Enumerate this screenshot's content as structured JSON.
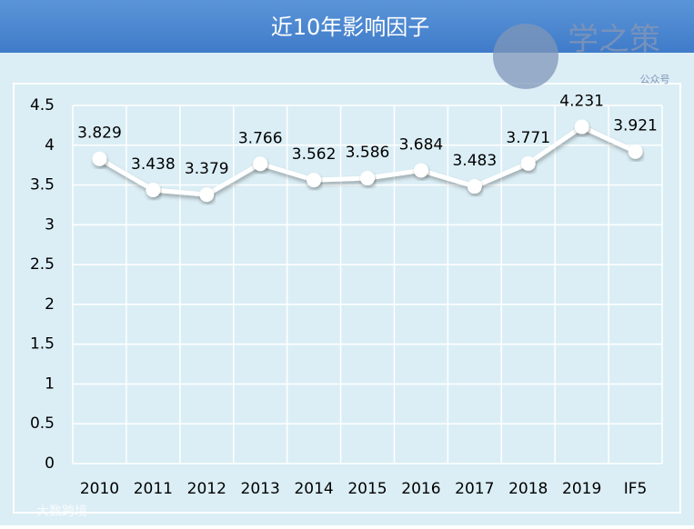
{
  "chart_data": {
    "type": "line",
    "title": "近10年影响因子",
    "categories": [
      "2010",
      "2011",
      "2012",
      "2013",
      "2014",
      "2015",
      "2016",
      "2017",
      "2018",
      "2019",
      "IF5"
    ],
    "values": [
      3.829,
      3.438,
      3.379,
      3.766,
      3.562,
      3.586,
      3.684,
      3.483,
      3.771,
      4.231,
      3.921
    ],
    "color": "#ffffff",
    "ylim": [
      0,
      4.5
    ],
    "yticks": [
      0,
      0.5,
      1,
      1.5,
      2,
      2.5,
      3,
      3.5,
      4,
      4.5
    ],
    "grid": true,
    "watermarks": [
      "学之策",
      "公众号",
      "大数跨境"
    ]
  }
}
